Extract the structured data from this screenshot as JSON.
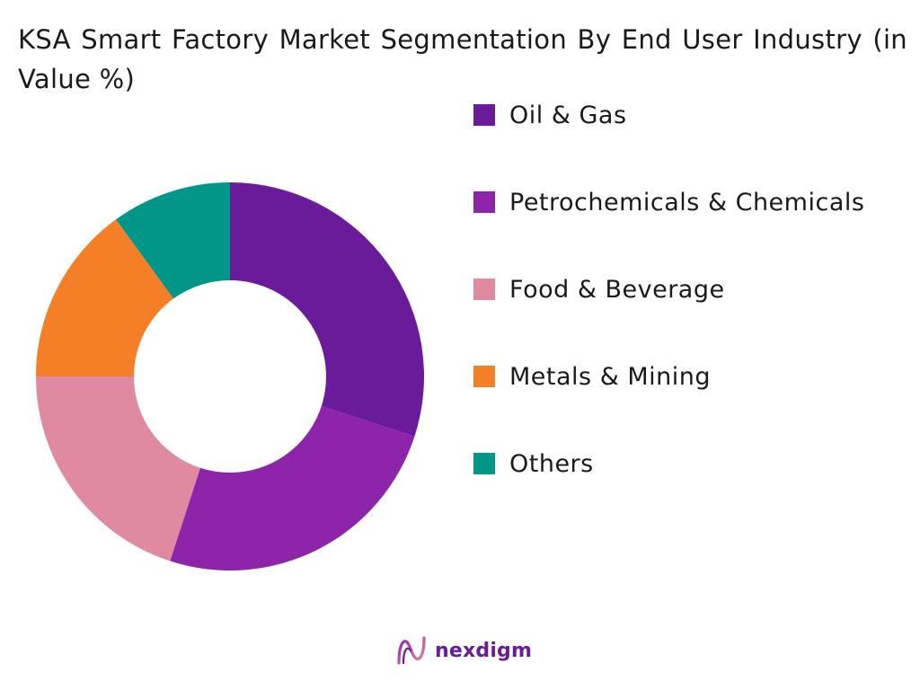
{
  "chart_data": {
    "type": "pie",
    "title": "KSA Smart Factory Market Segmentation By End User Industry (in Value %)",
    "categories": [
      "Oil & Gas",
      "Petrochemicals & Chemicals",
      "Food & Beverage",
      "Metals & Mining",
      "Others"
    ],
    "values": [
      30,
      25,
      20,
      15,
      10
    ],
    "colors": [
      "#6a1b9a",
      "#8e24aa",
      "#e08aa2",
      "#f57f26",
      "#009688"
    ],
    "legend_position": "right",
    "donut": true
  },
  "brand": {
    "name": "nexdigm",
    "logo_icon": "nexdigm-logo-icon"
  }
}
